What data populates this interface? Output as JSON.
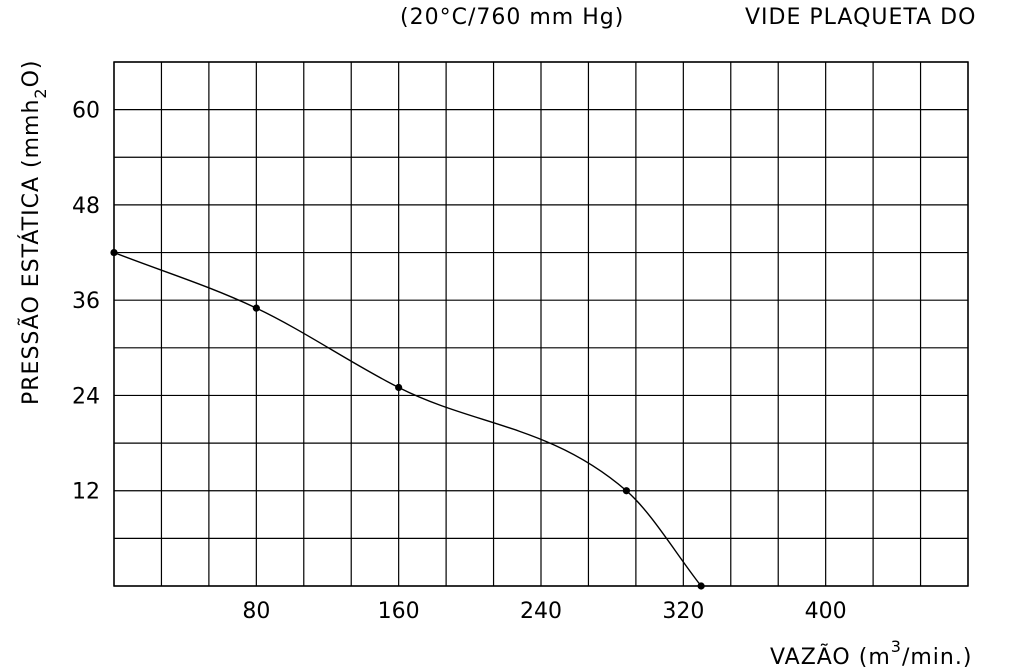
{
  "notes": {
    "conditions": "(20°C/760 mm Hg)",
    "reference": "VIDE PLAQUETA DO"
  },
  "chart_data": {
    "type": "line",
    "xlabel": "VAZÃO (m3/min.)",
    "xlabel_base": "VAZÃO (m",
    "xlabel_sup": "3",
    "xlabel_tail": "/min.)",
    "ylabel": "PRESSÃO ESTÁTICA (mmh2O)",
    "ylabel_base": "PRESSÃO ESTÁTICA (mmh",
    "ylabel_sub": "2",
    "ylabel_tail": "O)",
    "xlim": [
      0,
      480
    ],
    "ylim": [
      0,
      66
    ],
    "x_ticks": [
      80,
      160,
      240,
      320,
      400
    ],
    "y_ticks": [
      12,
      24,
      36,
      48,
      60
    ],
    "grid": true,
    "grid_x_step": 26.67,
    "grid_y_step": 6,
    "series": [
      {
        "x": [
          0,
          80,
          160,
          288,
          330
        ],
        "y": [
          42,
          35,
          25,
          12,
          0
        ]
      }
    ]
  }
}
